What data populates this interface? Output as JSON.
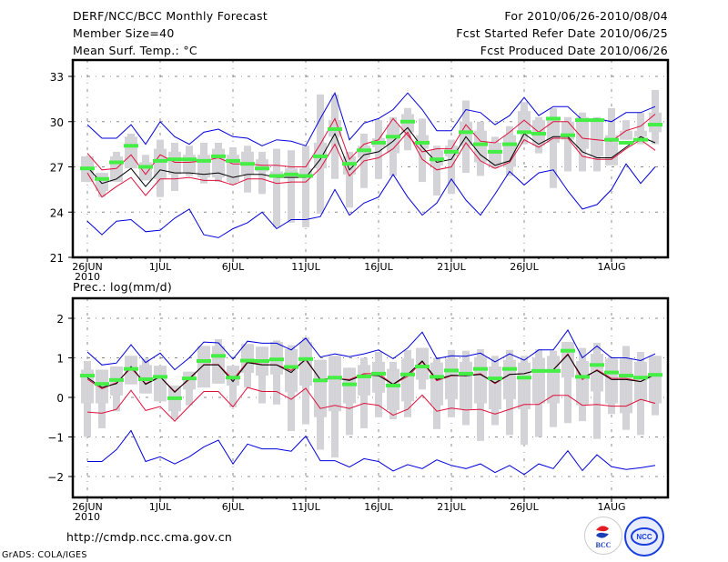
{
  "header": {
    "title": "DERF/NCC/BCC Monthly Forecast",
    "member_size": "Member Size=40",
    "variable": "Mean Surf. Temp.: °C",
    "period": "For 2010/06/26-2010/08/04",
    "started": "Fcst Started Refer Date 2010/06/25",
    "produced": "Fcst Produced Date 2010/06/26"
  },
  "footer": {
    "url": "http://cmdp.ncc.cma.gov.cn",
    "credit": "GrADS: COLA/IGES",
    "logo_left": "BCC",
    "logo_right": "NCC"
  },
  "colors": {
    "max_min": "#0000dd",
    "percentile": "#e0103a",
    "mean": "#000000",
    "median": "#44ee44",
    "box": "#d3d3d8",
    "grid": "#888888"
  },
  "chart_data": [
    {
      "type": "line",
      "title": "Mean Surf. Temp.: °C",
      "xlabel": "",
      "ylabel": "°C",
      "x_start": "2010-06-26",
      "x_ticks": [
        "26JUN",
        "1JUL",
        "6JUL",
        "11JUL",
        "16JUL",
        "21JUL",
        "26JUL",
        "1AUG"
      ],
      "x_tick_sub": "2010",
      "y_ticks": [
        21,
        24,
        27,
        30,
        33
      ],
      "ylim": [
        21,
        34.1
      ],
      "grid": true,
      "series": [
        {
          "name": "max",
          "values": [
            29.8,
            28.9,
            28.9,
            29.8,
            28.5,
            30.0,
            29.0,
            28.5,
            29.3,
            29.5,
            29.0,
            28.9,
            28.4,
            28.8,
            28.7,
            28.4,
            30.2,
            31.9,
            28.8,
            29.9,
            30.2,
            30.8,
            31.9,
            30.8,
            29.4,
            29.4,
            30.8,
            30.6,
            29.8,
            30.4,
            31.6,
            30.4,
            31.0,
            31.0,
            30.1,
            30.2,
            30.0,
            30.6,
            30.6,
            31.0
          ]
        },
        {
          "name": "upper_pct",
          "values": [
            27.9,
            26.8,
            26.9,
            27.8,
            26.5,
            27.8,
            27.3,
            27.3,
            27.4,
            27.6,
            27.2,
            27.2,
            27.1,
            27.1,
            27.0,
            27.0,
            28.5,
            30.2,
            27.5,
            28.5,
            28.8,
            30.2,
            29.1,
            28.0,
            28.2,
            28.2,
            29.8,
            28.7,
            28.6,
            29.3,
            30.1,
            29.3,
            30.0,
            30.0,
            28.9,
            28.8,
            28.7,
            29.4,
            29.7,
            30.5
          ]
        },
        {
          "name": "mean",
          "values": [
            27.0,
            25.9,
            26.2,
            26.9,
            25.7,
            26.8,
            26.6,
            26.6,
            26.5,
            26.6,
            26.3,
            26.5,
            26.5,
            26.3,
            26.3,
            26.3,
            27.5,
            29.2,
            26.8,
            27.8,
            28.0,
            28.7,
            29.6,
            28.3,
            27.3,
            27.5,
            29.0,
            27.8,
            27.1,
            27.4,
            29.2,
            28.5,
            29.0,
            29.0,
            28.0,
            27.6,
            27.6,
            28.3,
            29.0,
            28.6
          ]
        },
        {
          "name": "lower_pct",
          "values": [
            26.6,
            25.0,
            25.7,
            26.3,
            25.1,
            26.2,
            26.2,
            26.3,
            26.1,
            26.1,
            25.8,
            26.2,
            26.2,
            25.9,
            26.0,
            26.0,
            26.9,
            28.5,
            26.4,
            27.4,
            27.6,
            28.2,
            29.3,
            27.5,
            26.8,
            27.0,
            28.6,
            27.4,
            26.9,
            27.3,
            28.8,
            28.3,
            28.9,
            28.9,
            27.7,
            27.5,
            27.5,
            28.2,
            28.8,
            28.1
          ]
        },
        {
          "name": "min",
          "values": [
            23.4,
            22.5,
            23.4,
            23.5,
            22.7,
            22.8,
            23.6,
            24.2,
            22.5,
            22.3,
            22.9,
            23.3,
            24.0,
            22.9,
            23.5,
            23.5,
            23.7,
            25.5,
            23.8,
            24.6,
            25.0,
            26.5,
            25.0,
            23.8,
            24.6,
            26.2,
            24.8,
            23.8,
            25.2,
            26.7,
            25.8,
            26.6,
            26.8,
            25.4,
            24.2,
            24.5,
            25.5,
            27.2,
            25.9,
            27.0
          ]
        },
        {
          "name": "median",
          "values": [
            26.9,
            26.2,
            27.3,
            28.4,
            27.0,
            27.4,
            27.5,
            27.5,
            27.4,
            27.7,
            27.4,
            27.2,
            26.9,
            26.4,
            26.5,
            26.4,
            27.7,
            29.5,
            27.2,
            28.1,
            28.6,
            29.0,
            30.0,
            28.6,
            27.5,
            28.0,
            29.3,
            28.5,
            28.0,
            28.5,
            29.3,
            29.2,
            30.2,
            29.1,
            30.1,
            30.1,
            28.8,
            28.6,
            28.8,
            29.8
          ]
        },
        {
          "name": "box_p25",
          "values": [
            26.0,
            25.4,
            26.0,
            26.9,
            26.1,
            26.2,
            26.5,
            26.6,
            26.3,
            26.3,
            26.0,
            26.5,
            26.7,
            26.3,
            26.3,
            26.3,
            26.9,
            29.0,
            26.5,
            27.6,
            28.3,
            27.9,
            29.3,
            28.2,
            27.1,
            27.7,
            28.4,
            27.3,
            27.1,
            27.0,
            29.2,
            28.4,
            28.6,
            28.8,
            28.2,
            27.7,
            27.1,
            28.8,
            29.0,
            29.3
          ]
        },
        {
          "name": "box_p75",
          "values": [
            27.7,
            26.6,
            27.7,
            29.0,
            27.3,
            28.2,
            28.0,
            27.8,
            27.8,
            28.2,
            27.8,
            28.0,
            27.5,
            26.7,
            26.9,
            26.9,
            28.6,
            30.1,
            27.7,
            28.4,
            28.9,
            29.8,
            30.5,
            29.1,
            28.1,
            28.4,
            30.0,
            29.4,
            28.6,
            29.1,
            30.7,
            30.1,
            30.2,
            30.0,
            30.3,
            30.2,
            29.1,
            29.4,
            29.4,
            30.6
          ]
        },
        {
          "name": "box_p05",
          "values": [
            26.0,
            25.0,
            26.0,
            26.9,
            26.1,
            25.0,
            25.4,
            26.4,
            25.9,
            26.0,
            25.8,
            25.3,
            25.2,
            23.0,
            23.3,
            23.0,
            23.9,
            26.2,
            24.3,
            25.6,
            26.2,
            26.4,
            28.1,
            26.0,
            25.1,
            25.2,
            26.6,
            26.4,
            26.9,
            26.4,
            28.5,
            27.9,
            25.6,
            26.7,
            26.7,
            26.7,
            27.5,
            28.8,
            28.5,
            28.5
          ]
        },
        {
          "name": "box_p95",
          "values": [
            27.7,
            26.6,
            28.0,
            29.2,
            27.8,
            28.8,
            28.6,
            28.4,
            28.6,
            28.6,
            28.3,
            28.4,
            28.0,
            28.2,
            28.1,
            28.4,
            31.8,
            31.8,
            28.0,
            29.2,
            30.1,
            30.3,
            30.9,
            30.2,
            28.4,
            28.8,
            31.4,
            30.0,
            29.0,
            29.7,
            31.3,
            30.3,
            30.9,
            30.3,
            30.6,
            30.3,
            30.9,
            30.1,
            30.6,
            32.1
          ]
        }
      ]
    },
    {
      "type": "line",
      "title": "Prec.: log(mm/d)",
      "xlabel": "",
      "ylabel": "log(mm/d)",
      "x_start": "2010-06-26",
      "x_ticks": [
        "26JUN",
        "1JUL",
        "6JUL",
        "11JUL",
        "16JUL",
        "21JUL",
        "26JUL",
        "1AUG"
      ],
      "x_tick_sub": "2010",
      "y_ticks": [
        -2,
        -1,
        0,
        1,
        2
      ],
      "ylim": [
        -2.5,
        2.5
      ],
      "grid": true,
      "series": [
        {
          "name": "max",
          "values": [
            1.15,
            0.82,
            0.87,
            1.33,
            0.88,
            1.12,
            0.7,
            1.0,
            1.4,
            1.38,
            0.97,
            1.42,
            1.37,
            1.37,
            1.2,
            1.5,
            1.02,
            1.1,
            1.03,
            1.1,
            1.2,
            0.98,
            1.25,
            1.65,
            0.98,
            1.05,
            1.04,
            1.12,
            0.9,
            1.1,
            0.94,
            1.2,
            1.2,
            1.7,
            1.0,
            1.3,
            1.0,
            1.0,
            0.93,
            1.1
          ]
        },
        {
          "name": "upper_pct",
          "values": [
            0.46,
            0.22,
            0.37,
            0.74,
            0.35,
            0.52,
            0.15,
            0.45,
            0.83,
            0.83,
            0.45,
            0.9,
            0.83,
            0.82,
            0.68,
            0.95,
            0.45,
            0.48,
            0.45,
            0.6,
            0.6,
            0.33,
            0.53,
            0.9,
            0.42,
            0.55,
            0.55,
            0.6,
            0.35,
            0.58,
            0.6,
            0.7,
            0.7,
            1.1,
            0.45,
            0.7,
            0.48,
            0.48,
            0.4,
            0.6
          ]
        },
        {
          "name": "mean",
          "values": [
            0.5,
            0.25,
            0.35,
            0.78,
            0.33,
            0.52,
            0.13,
            0.48,
            0.82,
            0.82,
            0.4,
            0.88,
            0.82,
            0.82,
            0.63,
            0.97,
            0.45,
            0.49,
            0.43,
            0.57,
            0.55,
            0.33,
            0.58,
            0.92,
            0.45,
            0.56,
            0.55,
            0.58,
            0.37,
            0.58,
            0.6,
            0.7,
            0.7,
            1.08,
            0.5,
            0.68,
            0.45,
            0.45,
            0.4,
            0.58
          ]
        },
        {
          "name": "lower_pct",
          "values": [
            -0.37,
            -0.4,
            -0.3,
            0.18,
            -0.33,
            -0.23,
            -0.6,
            -0.22,
            0.15,
            0.15,
            -0.24,
            0.25,
            0.15,
            0.15,
            -0.05,
            0.23,
            -0.28,
            -0.2,
            -0.28,
            -0.15,
            -0.2,
            -0.45,
            -0.3,
            0.06,
            -0.35,
            -0.27,
            -0.32,
            -0.3,
            -0.42,
            -0.3,
            -0.18,
            -0.18,
            0.05,
            0.05,
            -0.2,
            -0.18,
            -0.22,
            -0.22,
            -0.05,
            -0.15
          ]
        },
        {
          "name": "min",
          "values": [
            -1.62,
            -1.62,
            -1.32,
            -0.84,
            -1.62,
            -1.5,
            -1.68,
            -1.5,
            -1.25,
            -1.08,
            -1.68,
            -1.18,
            -1.3,
            -1.3,
            -1.36,
            -0.98,
            -1.6,
            -1.6,
            -1.76,
            -1.55,
            -1.62,
            -1.86,
            -1.7,
            -1.8,
            -1.58,
            -1.72,
            -1.8,
            -1.68,
            -1.9,
            -1.72,
            -1.95,
            -1.68,
            -1.8,
            -1.35,
            -1.85,
            -1.45,
            -1.75,
            -1.82,
            -1.78,
            -1.72
          ]
        },
        {
          "name": "median",
          "values": [
            0.55,
            0.34,
            0.44,
            0.72,
            0.46,
            0.52,
            -0.02,
            0.48,
            0.92,
            1.05,
            0.5,
            0.93,
            0.92,
            0.96,
            0.77,
            0.97,
            0.43,
            0.5,
            0.33,
            0.53,
            0.6,
            0.3,
            0.58,
            0.78,
            0.52,
            0.68,
            0.6,
            0.72,
            0.48,
            0.72,
            0.5,
            0.67,
            0.67,
            1.18,
            0.52,
            0.82,
            0.63,
            0.55,
            0.5,
            0.57
          ]
        },
        {
          "name": "box_p25",
          "values": [
            -0.15,
            -0.15,
            0.05,
            0.33,
            0.1,
            -0.1,
            -0.35,
            0.2,
            0.25,
            0.35,
            0.3,
            0.62,
            0.55,
            0.58,
            0.13,
            0.3,
            -0.5,
            -0.35,
            -0.15,
            0.05,
            0.12,
            -0.32,
            -0.1,
            0.45,
            -0.2,
            -0.05,
            -0.3,
            -0.15,
            -0.3,
            -0.05,
            -0.3,
            -0.15,
            -0.15,
            0.5,
            -0.2,
            0.15,
            -0.15,
            -0.4,
            -0.1,
            -0.15
          ]
        },
        {
          "name": "box_p75",
          "values": [
            0.7,
            0.7,
            0.78,
            1.05,
            0.82,
            0.8,
            0.3,
            0.65,
            1.3,
            1.3,
            0.8,
            1.35,
            1.28,
            1.4,
            1.22,
            1.4,
            0.95,
            1.05,
            0.75,
            0.82,
            0.9,
            0.72,
            0.98,
            1.25,
            0.88,
            0.98,
            0.9,
            1.02,
            0.78,
            0.95,
            0.88,
            1.0,
            1.05,
            1.4,
            0.92,
            1.1,
            0.98,
            0.98,
            0.9,
            1.05
          ]
        },
        {
          "name": "box_p05",
          "values": [
            -1.0,
            -0.78,
            -0.35,
            0.33,
            0.1,
            -0.1,
            -0.55,
            -0.2,
            0.25,
            0.35,
            -0.25,
            0.25,
            -0.15,
            -0.18,
            -0.85,
            -0.68,
            -1.32,
            -1.52,
            -0.95,
            -0.78,
            -0.5,
            -0.55,
            -0.5,
            0.2,
            -0.8,
            -0.5,
            -0.7,
            -1.1,
            -0.7,
            -0.95,
            -1.2,
            -1.0,
            -0.75,
            -0.65,
            -0.6,
            -1.05,
            -0.42,
            -0.82,
            -0.95,
            -0.45
          ]
        },
        {
          "name": "box_p95",
          "values": [
            0.92,
            0.7,
            0.78,
            1.05,
            0.98,
            0.8,
            0.3,
            0.65,
            1.3,
            1.47,
            0.8,
            1.35,
            1.28,
            1.44,
            1.32,
            1.52,
            0.95,
            1.05,
            0.75,
            1.0,
            1.15,
            0.9,
            1.2,
            1.25,
            1.0,
            1.2,
            1.18,
            1.22,
            1.05,
            1.2,
            1.05,
            1.22,
            1.18,
            1.4,
            1.25,
            1.38,
            1.02,
            1.3,
            1.15,
            1.05
          ]
        }
      ]
    }
  ]
}
